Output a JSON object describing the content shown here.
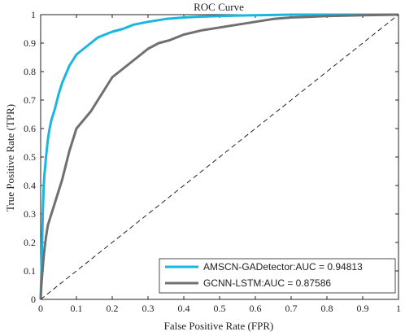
{
  "chart_data": {
    "type": "line",
    "title": "ROC Curve",
    "xlabel": "False Positive Rate (FPR)",
    "ylabel": "True Positive Rate (TPR)",
    "xlim": [
      0,
      1
    ],
    "ylim": [
      0,
      1
    ],
    "x_ticks": [
      "0",
      "0.1",
      "0.2",
      "0.3",
      "0.4",
      "0.5",
      "0.6",
      "0.7",
      "0.8",
      "0.9",
      "1"
    ],
    "y_ticks": [
      "0",
      "0.1",
      "0.2",
      "0.3",
      "0.4",
      "0.5",
      "0.6",
      "0.7",
      "0.8",
      "0.9",
      "1"
    ],
    "grid": false,
    "legend_position": "bottom-right",
    "series": [
      {
        "name": "AMSCN-GADetector:AUC = 0.94813",
        "color": "#1bb6e0",
        "x": [
          0,
          0.002,
          0.004,
          0.006,
          0.008,
          0.01,
          0.015,
          0.02,
          0.025,
          0.03,
          0.04,
          0.05,
          0.06,
          0.07,
          0.08,
          0.09,
          0.1,
          0.12,
          0.14,
          0.16,
          0.18,
          0.2,
          0.23,
          0.26,
          0.3,
          0.35,
          0.4,
          0.45,
          0.5,
          0.55,
          0.6,
          0.65,
          0.7,
          0.8,
          0.9,
          1.0
        ],
        "y": [
          0,
          0.1,
          0.2,
          0.3,
          0.38,
          0.43,
          0.5,
          0.56,
          0.6,
          0.63,
          0.67,
          0.72,
          0.76,
          0.79,
          0.82,
          0.84,
          0.86,
          0.88,
          0.9,
          0.92,
          0.93,
          0.94,
          0.95,
          0.965,
          0.975,
          0.985,
          0.99,
          0.993,
          0.995,
          0.997,
          0.998,
          0.999,
          1.0,
          1.0,
          1.0,
          1.0
        ]
      },
      {
        "name": "GCNN-LSTM:AUC = 0.87586",
        "color": "#707070",
        "x": [
          0,
          0.002,
          0.005,
          0.01,
          0.015,
          0.02,
          0.03,
          0.04,
          0.05,
          0.06,
          0.07,
          0.08,
          0.09,
          0.1,
          0.12,
          0.14,
          0.16,
          0.18,
          0.2,
          0.22,
          0.25,
          0.28,
          0.3,
          0.33,
          0.36,
          0.4,
          0.45,
          0.5,
          0.55,
          0.6,
          0.65,
          0.7,
          0.8,
          0.9,
          1.0
        ],
        "y": [
          0,
          0.05,
          0.1,
          0.17,
          0.22,
          0.26,
          0.3,
          0.34,
          0.38,
          0.42,
          0.47,
          0.52,
          0.56,
          0.6,
          0.63,
          0.66,
          0.7,
          0.74,
          0.78,
          0.8,
          0.83,
          0.86,
          0.88,
          0.9,
          0.91,
          0.93,
          0.945,
          0.955,
          0.965,
          0.975,
          0.985,
          0.99,
          0.995,
          0.998,
          1.0
        ]
      },
      {
        "name": "",
        "style": "dashed",
        "color": "#222222",
        "x": [
          0,
          1
        ],
        "y": [
          0,
          1
        ]
      }
    ]
  }
}
